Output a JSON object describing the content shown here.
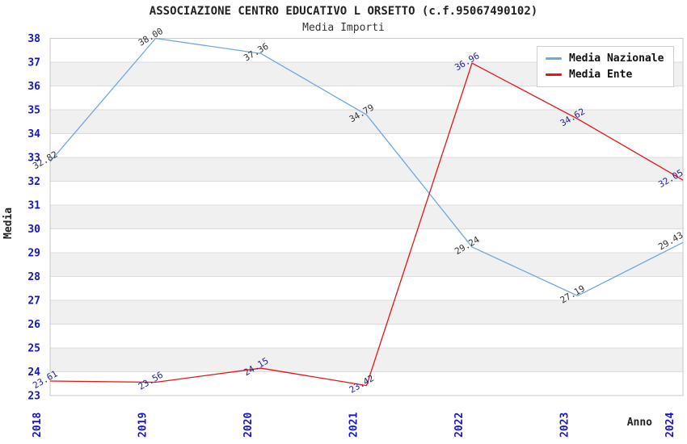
{
  "chart_data": {
    "type": "line",
    "title": "ASSOCIAZIONE CENTRO EDUCATIVO L ORSETTO (c.f.95067490102)",
    "subtitle": "Media Importi",
    "xlabel": "Anno",
    "ylabel": "Media",
    "categories": [
      "2018",
      "2019",
      "2020",
      "2021",
      "2022",
      "2023",
      "2024"
    ],
    "yticks": [
      23,
      24,
      25,
      26,
      27,
      28,
      29,
      30,
      31,
      32,
      33,
      34,
      35,
      36,
      37,
      38
    ],
    "ylim": [
      23,
      38
    ],
    "grid": "horizontal-bands-alternating",
    "legend_position": "top-right",
    "series": [
      {
        "name": "Media Nazionale",
        "color": "#6fa8dc",
        "label_color": "#333333",
        "values": [
          32.82,
          38.0,
          37.36,
          34.79,
          29.24,
          27.19,
          29.43
        ]
      },
      {
        "name": "Media Ente",
        "color": "#ee1111",
        "label_color": "#242499",
        "values": [
          23.61,
          23.56,
          24.15,
          23.42,
          36.96,
          34.62,
          32.05
        ]
      }
    ],
    "colors": {
      "tick_label": "#1515cf",
      "band": "#f0f0f0",
      "gridline": "#dcdcdc",
      "plot_border": "#c9c9c9",
      "axis_title": "#222222",
      "background": "#ffffff"
    }
  }
}
